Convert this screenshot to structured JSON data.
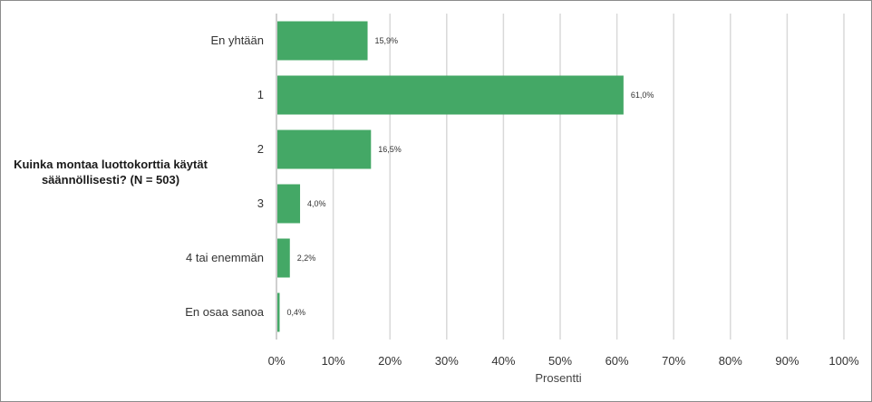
{
  "chart_data": {
    "type": "bar",
    "orientation": "horizontal",
    "title": "Kuinka montaa luottokorttia käytät säännöllisesti? (N = 503)",
    "xlabel": "Prosentti",
    "ylabel": "",
    "categories": [
      "En yhtään",
      "1",
      "2",
      "3",
      "4 tai enemmän",
      "En osaa sanoa"
    ],
    "values": [
      15.9,
      61.0,
      16.5,
      4.0,
      2.2,
      0.4
    ],
    "value_labels": [
      "15,9%",
      "61,0%",
      "16,5%",
      "4,0%",
      "2,2%",
      "0,4%"
    ],
    "xlim": [
      0,
      100
    ],
    "x_ticks": [
      "0%",
      "10%",
      "20%",
      "30%",
      "40%",
      "50%",
      "60%",
      "70%",
      "80%",
      "90%",
      "100%"
    ],
    "grid": "vertical",
    "bar_color": "#44a866",
    "grid_color": "#d9d9d9"
  }
}
